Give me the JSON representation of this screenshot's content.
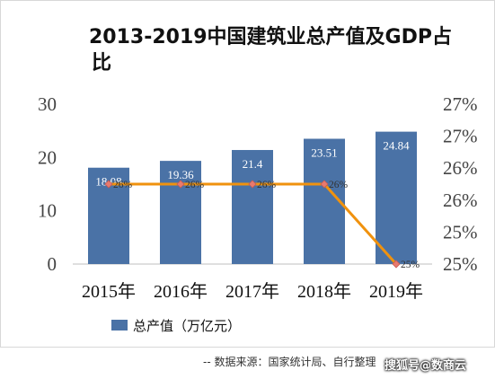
{
  "chart_data": {
    "type": "bar",
    "title_line1": "2013-2019中国建筑业总产值及GDP占",
    "title_line2": "比",
    "categories": [
      "2015年",
      "2016年",
      "2017年",
      "2018年",
      "2019年"
    ],
    "series": [
      {
        "name": "总产值（万亿元）",
        "type": "bar",
        "axis": "left",
        "color": "#4a72a6",
        "values": [
          18.08,
          19.36,
          21.4,
          23.51,
          24.84
        ],
        "labels": [
          "18.08",
          "19.36",
          "21.4",
          "23.51",
          "24.84"
        ]
      },
      {
        "type": "line",
        "axis": "right",
        "color": "#f0920e",
        "values": [
          26,
          26,
          26,
          26,
          25
        ],
        "labels": [
          "26%",
          "26%",
          "26%",
          "26%",
          "25%"
        ]
      }
    ],
    "y_left": {
      "min": 0,
      "max": 30,
      "ticks": [
        "0",
        "10",
        "20",
        "30"
      ]
    },
    "y_right": {
      "min": 25,
      "max": 27,
      "ticks": [
        "25%",
        "25%",
        "26%",
        "26%",
        "27%",
        "27%"
      ]
    },
    "legend_position": "bottom-left",
    "grid": false
  },
  "source_text": "-- 数据来源：国家统计局、自行整理",
  "watermark_text": "搜狐号@数商云"
}
